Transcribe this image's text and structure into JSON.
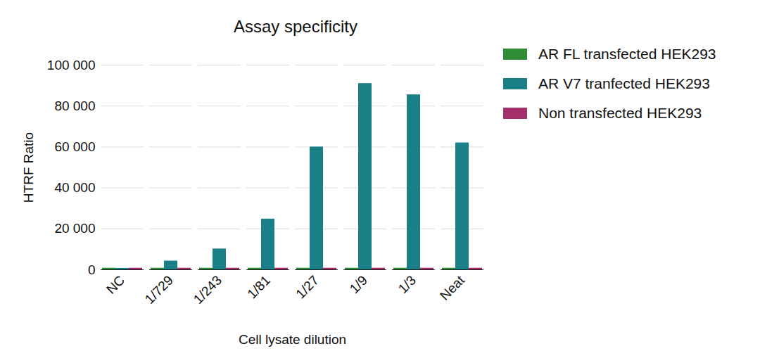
{
  "chart_data": {
    "type": "bar",
    "title": "Assay specificity",
    "x_label": "Cell lysate dilution",
    "y_label": "HTRF Ratio",
    "categories": [
      "NC",
      "1/729",
      "1/243",
      "1/81",
      "1/27",
      "1/9",
      "1/3",
      "Neat"
    ],
    "series": [
      {
        "name": "AR FL transfected HEK293",
        "color": "#2e8b36",
        "values": [
          800,
          800,
          800,
          800,
          800,
          800,
          800,
          800
        ]
      },
      {
        "name": "AR V7 tranfected HEK293",
        "color": "#1a7f86",
        "values": [
          700,
          4300,
          10200,
          24800,
          60000,
          91000,
          85500,
          62000
        ]
      },
      {
        "name": "Non transfected HEK293",
        "color": "#a3306b",
        "values": [
          800,
          800,
          800,
          800,
          800,
          800,
          800,
          800
        ]
      }
    ],
    "ylim": [
      0,
      100000
    ],
    "yticks": [
      0,
      {
        "value": 20000,
        "label": "20 000"
      },
      {
        "value": 40000,
        "label": "40 000"
      },
      {
        "value": 60000,
        "label": "60 000"
      },
      {
        "value": 80000,
        "label": "80 000"
      },
      {
        "value": 100000,
        "label": "100 000"
      }
    ],
    "grid": true,
    "legend": "right"
  }
}
